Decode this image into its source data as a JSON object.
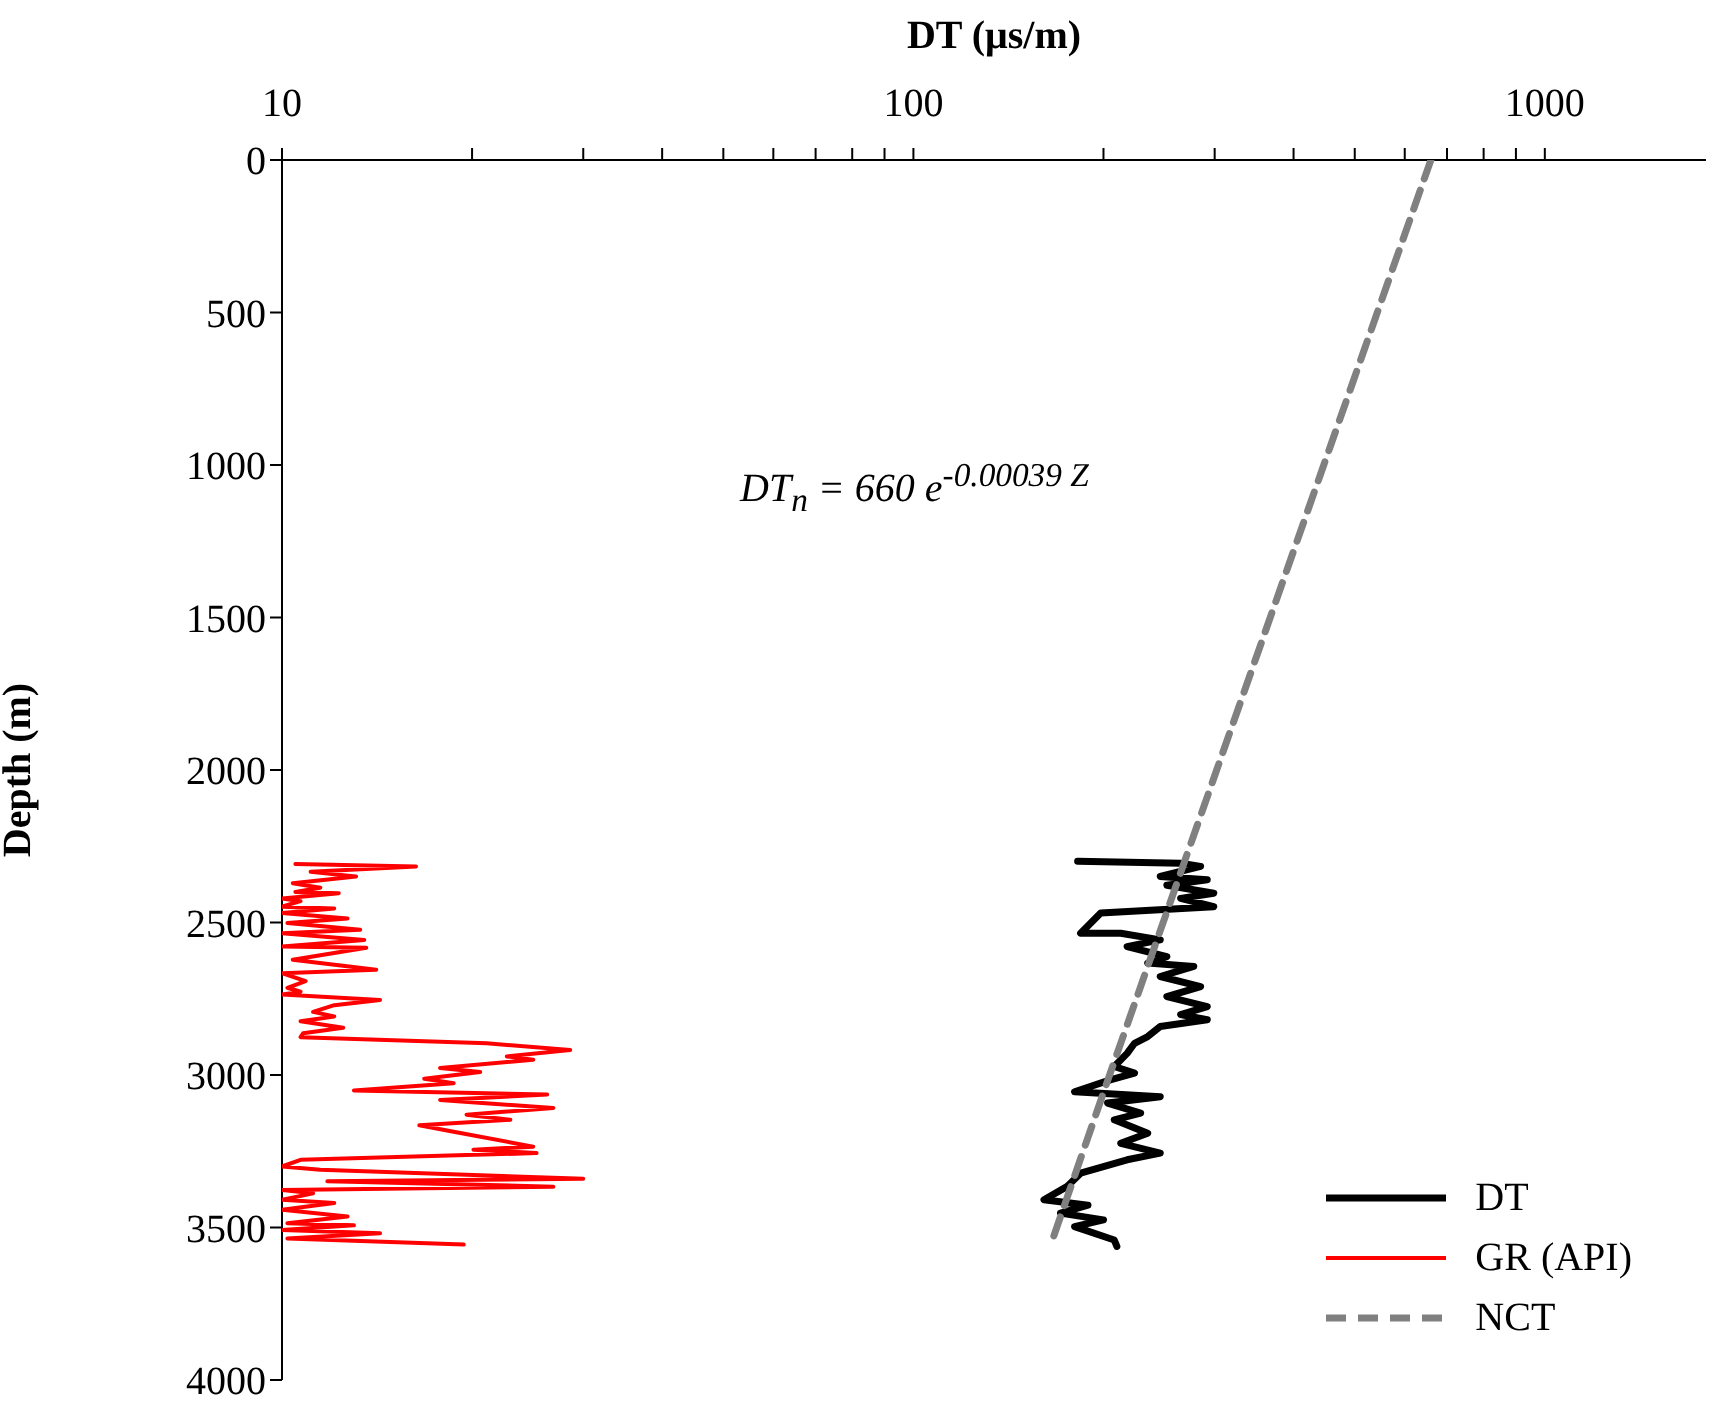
{
  "chart_data": {
    "type": "line",
    "xlabel": "DT (μs/m)",
    "ylabel": "Depth (m)",
    "xlim": [
      10,
      1800
    ],
    "xticks": [
      10,
      {
        "value": 20,
        "label": null
      },
      {
        "value": 30,
        "label": null
      },
      {
        "value": 40,
        "label": null
      },
      {
        "value": 50,
        "label": null
      },
      {
        "value": 60,
        "label": null
      },
      {
        "value": 70,
        "label": null
      },
      {
        "value": 80,
        "label": null
      },
      {
        "value": 90,
        "label": null
      },
      100,
      {
        "value": 200,
        "label": null
      },
      {
        "value": 300,
        "label": null
      },
      {
        "value": 400,
        "label": null
      },
      {
        "value": 500,
        "label": null
      },
      {
        "value": 600,
        "label": null
      },
      {
        "value": 700,
        "label": null
      },
      {
        "value": 800,
        "label": null
      },
      {
        "value": 900,
        "label": null
      },
      1000
    ],
    "log": "x",
    "ylim": [
      4000,
      0
    ],
    "yticks": [
      0,
      500,
      1000,
      1500,
      2000,
      2500,
      3000,
      3500,
      4000
    ],
    "legend": "bottom right",
    "annotations": [
      "DT$_{n}$ = 660 e$^{-0.00039 Z}$"
    ],
    "series": [
      {
        "name": "DT",
        "color": "#000000",
        "x": [
          182,
          265,
          285,
          246,
          292,
          252,
          299,
          265,
          299,
          198,
          184,
          213,
          246,
          218,
          252,
          235,
          278,
          246,
          285,
          252,
          292,
          265,
          292,
          246,
          235,
          224,
          218,
          208,
          224,
          205,
          180,
          246,
          203,
          229,
          208,
          235,
          213,
          246,
          218,
          184,
          175,
          161,
          189,
          171,
          200,
          180,
          208,
          210
        ],
        "values": [
          2299,
          2306,
          2316,
          2349,
          2360,
          2378,
          2404,
          2421,
          2448,
          2469,
          2535,
          2535,
          2557,
          2579,
          2612,
          2633,
          2644,
          2677,
          2710,
          2743,
          2776,
          2802,
          2819,
          2841,
          2874,
          2896,
          2929,
          2972,
          2994,
          3016,
          3055,
          3071,
          3092,
          3125,
          3147,
          3191,
          3224,
          3256,
          3278,
          3322,
          3366,
          3409,
          3427,
          3453,
          3475,
          3497,
          3541,
          3562
        ]
      },
      {
        "name": "GR (API)",
        "color": "#ff0000",
        "x": [
          10.5,
          16.3,
          11.1,
          13.1,
          10.4,
          11.5,
          10.5,
          12.3,
          10.0,
          10.7,
          10.0,
          12.1,
          10.0,
          12.7,
          10.2,
          13.3,
          10.0,
          13.5,
          10.0,
          13.6,
          10.4,
          14.1,
          10.0,
          10.9,
          10.2,
          10.7,
          10.0,
          14.3,
          12.1,
          11.2,
          12.1,
          10.7,
          12.5,
          10.8,
          10.7,
          21.1,
          28.6,
          22.7,
          25.0,
          17.8,
          20.6,
          16.8,
          18.7,
          13.0,
          26.3,
          17.8,
          26.9,
          19.6,
          23.0,
          16.5,
          18.7,
          25.0,
          20.1,
          25.3,
          10.7,
          10.0,
          11.5,
          30.0,
          11.8,
          26.9,
          10.0,
          11.2,
          10.0,
          12.1,
          10.0,
          12.7,
          10.2,
          13.0,
          10.0,
          14.3,
          10.2,
          19.4
        ],
        "values": [
          2308,
          2316,
          2334,
          2349,
          2371,
          2386,
          2400,
          2404,
          2421,
          2430,
          2448,
          2454,
          2469,
          2487,
          2502,
          2524,
          2535,
          2557,
          2579,
          2583,
          2622,
          2655,
          2666,
          2692,
          2714,
          2727,
          2736,
          2754,
          2771,
          2793,
          2808,
          2824,
          2845,
          2863,
          2876,
          2896,
          2918,
          2939,
          2950,
          2977,
          2990,
          3012,
          3027,
          3051,
          3064,
          3082,
          3108,
          3130,
          3147,
          3165,
          3186,
          3235,
          3245,
          3256,
          3278,
          3300,
          3311,
          3340,
          3348,
          3366,
          3377,
          3388,
          3409,
          3420,
          3442,
          3464,
          3486,
          3493,
          3508,
          3519,
          3536,
          3556
        ]
      },
      {
        "name": "NCT",
        "color": "#808080",
        "line_style": "dashed",
        "x": [
          660,
          446.6,
          302.2,
          204.5,
          164.8
        ],
        "values": [
          0,
          1000,
          2000,
          3000,
          3560
        ]
      }
    ]
  }
}
